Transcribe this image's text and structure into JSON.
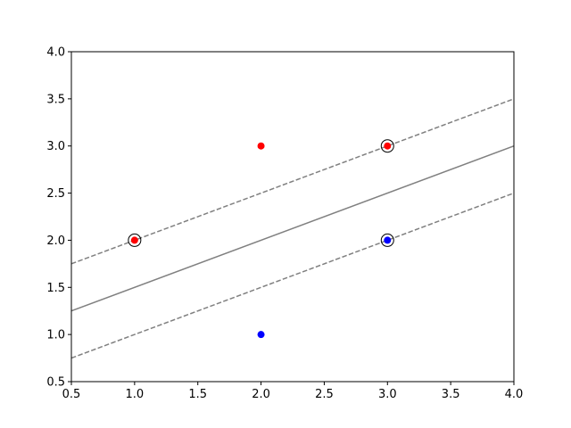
{
  "chart_data": {
    "type": "scatter",
    "title": "",
    "xlabel": "",
    "ylabel": "",
    "xlim": [
      0.5,
      4.0
    ],
    "ylim": [
      0.5,
      4.0
    ],
    "x_ticks": [
      "0.5",
      "1.0",
      "1.5",
      "2.0",
      "2.5",
      "3.0",
      "3.5",
      "4.0"
    ],
    "y_ticks": [
      "0.5",
      "1.0",
      "1.5",
      "2.0",
      "2.5",
      "3.0",
      "3.5",
      "4.0"
    ],
    "grid": false,
    "points": [
      {
        "x": 1.0,
        "y": 2.0,
        "color": "#ff0000"
      },
      {
        "x": 2.0,
        "y": 3.0,
        "color": "#ff0000"
      },
      {
        "x": 3.0,
        "y": 3.0,
        "color": "#ff0000"
      },
      {
        "x": 2.0,
        "y": 1.0,
        "color": "#0000ff"
      },
      {
        "x": 3.0,
        "y": 2.0,
        "color": "#0000ff"
      }
    ],
    "support_vectors": [
      {
        "x": 1.0,
        "y": 2.0
      },
      {
        "x": 3.0,
        "y": 3.0
      },
      {
        "x": 3.0,
        "y": 2.0
      }
    ],
    "lines": [
      {
        "role": "decision-boundary",
        "style": "solid",
        "color": "#808080",
        "x": [
          0.5,
          4.0
        ],
        "y": [
          1.25,
          3.0
        ]
      },
      {
        "role": "upper-margin",
        "style": "dashed",
        "color": "#808080",
        "x": [
          0.5,
          4.0
        ],
        "y": [
          1.75,
          3.5
        ]
      },
      {
        "role": "lower-margin",
        "style": "dashed",
        "color": "#808080",
        "x": [
          0.5,
          4.0
        ],
        "y": [
          0.75,
          2.5
        ]
      }
    ]
  }
}
